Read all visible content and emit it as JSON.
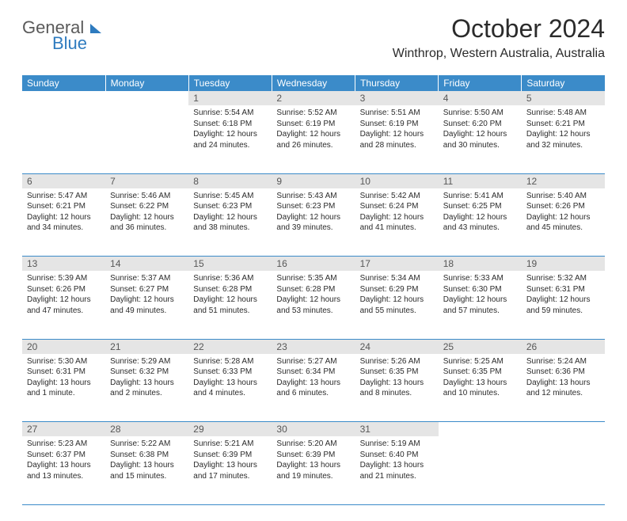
{
  "logo": {
    "top": "General",
    "bottom": "Blue"
  },
  "title": "October 2024",
  "location": "Winthrop, Western Australia, Australia",
  "colors": {
    "header_bg": "#3b8bc9",
    "header_text": "#ffffff",
    "daynum_bg": "#e5e5e5",
    "daynum_text": "#575757",
    "body_text": "#2b2b2b",
    "border": "#3b8bc9",
    "logo_gray": "#5a5a5a",
    "logo_blue": "#2e7bbf"
  },
  "weekdays": [
    "Sunday",
    "Monday",
    "Tuesday",
    "Wednesday",
    "Thursday",
    "Friday",
    "Saturday"
  ],
  "weeks": [
    [
      null,
      null,
      {
        "d": "1",
        "sr": "Sunrise: 5:54 AM",
        "ss": "Sunset: 6:18 PM",
        "dl1": "Daylight: 12 hours",
        "dl2": "and 24 minutes."
      },
      {
        "d": "2",
        "sr": "Sunrise: 5:52 AM",
        "ss": "Sunset: 6:19 PM",
        "dl1": "Daylight: 12 hours",
        "dl2": "and 26 minutes."
      },
      {
        "d": "3",
        "sr": "Sunrise: 5:51 AM",
        "ss": "Sunset: 6:19 PM",
        "dl1": "Daylight: 12 hours",
        "dl2": "and 28 minutes."
      },
      {
        "d": "4",
        "sr": "Sunrise: 5:50 AM",
        "ss": "Sunset: 6:20 PM",
        "dl1": "Daylight: 12 hours",
        "dl2": "and 30 minutes."
      },
      {
        "d": "5",
        "sr": "Sunrise: 5:48 AM",
        "ss": "Sunset: 6:21 PM",
        "dl1": "Daylight: 12 hours",
        "dl2": "and 32 minutes."
      }
    ],
    [
      {
        "d": "6",
        "sr": "Sunrise: 5:47 AM",
        "ss": "Sunset: 6:21 PM",
        "dl1": "Daylight: 12 hours",
        "dl2": "and 34 minutes."
      },
      {
        "d": "7",
        "sr": "Sunrise: 5:46 AM",
        "ss": "Sunset: 6:22 PM",
        "dl1": "Daylight: 12 hours",
        "dl2": "and 36 minutes."
      },
      {
        "d": "8",
        "sr": "Sunrise: 5:45 AM",
        "ss": "Sunset: 6:23 PM",
        "dl1": "Daylight: 12 hours",
        "dl2": "and 38 minutes."
      },
      {
        "d": "9",
        "sr": "Sunrise: 5:43 AM",
        "ss": "Sunset: 6:23 PM",
        "dl1": "Daylight: 12 hours",
        "dl2": "and 39 minutes."
      },
      {
        "d": "10",
        "sr": "Sunrise: 5:42 AM",
        "ss": "Sunset: 6:24 PM",
        "dl1": "Daylight: 12 hours",
        "dl2": "and 41 minutes."
      },
      {
        "d": "11",
        "sr": "Sunrise: 5:41 AM",
        "ss": "Sunset: 6:25 PM",
        "dl1": "Daylight: 12 hours",
        "dl2": "and 43 minutes."
      },
      {
        "d": "12",
        "sr": "Sunrise: 5:40 AM",
        "ss": "Sunset: 6:26 PM",
        "dl1": "Daylight: 12 hours",
        "dl2": "and 45 minutes."
      }
    ],
    [
      {
        "d": "13",
        "sr": "Sunrise: 5:39 AM",
        "ss": "Sunset: 6:26 PM",
        "dl1": "Daylight: 12 hours",
        "dl2": "and 47 minutes."
      },
      {
        "d": "14",
        "sr": "Sunrise: 5:37 AM",
        "ss": "Sunset: 6:27 PM",
        "dl1": "Daylight: 12 hours",
        "dl2": "and 49 minutes."
      },
      {
        "d": "15",
        "sr": "Sunrise: 5:36 AM",
        "ss": "Sunset: 6:28 PM",
        "dl1": "Daylight: 12 hours",
        "dl2": "and 51 minutes."
      },
      {
        "d": "16",
        "sr": "Sunrise: 5:35 AM",
        "ss": "Sunset: 6:28 PM",
        "dl1": "Daylight: 12 hours",
        "dl2": "and 53 minutes."
      },
      {
        "d": "17",
        "sr": "Sunrise: 5:34 AM",
        "ss": "Sunset: 6:29 PM",
        "dl1": "Daylight: 12 hours",
        "dl2": "and 55 minutes."
      },
      {
        "d": "18",
        "sr": "Sunrise: 5:33 AM",
        "ss": "Sunset: 6:30 PM",
        "dl1": "Daylight: 12 hours",
        "dl2": "and 57 minutes."
      },
      {
        "d": "19",
        "sr": "Sunrise: 5:32 AM",
        "ss": "Sunset: 6:31 PM",
        "dl1": "Daylight: 12 hours",
        "dl2": "and 59 minutes."
      }
    ],
    [
      {
        "d": "20",
        "sr": "Sunrise: 5:30 AM",
        "ss": "Sunset: 6:31 PM",
        "dl1": "Daylight: 13 hours",
        "dl2": "and 1 minute."
      },
      {
        "d": "21",
        "sr": "Sunrise: 5:29 AM",
        "ss": "Sunset: 6:32 PM",
        "dl1": "Daylight: 13 hours",
        "dl2": "and 2 minutes."
      },
      {
        "d": "22",
        "sr": "Sunrise: 5:28 AM",
        "ss": "Sunset: 6:33 PM",
        "dl1": "Daylight: 13 hours",
        "dl2": "and 4 minutes."
      },
      {
        "d": "23",
        "sr": "Sunrise: 5:27 AM",
        "ss": "Sunset: 6:34 PM",
        "dl1": "Daylight: 13 hours",
        "dl2": "and 6 minutes."
      },
      {
        "d": "24",
        "sr": "Sunrise: 5:26 AM",
        "ss": "Sunset: 6:35 PM",
        "dl1": "Daylight: 13 hours",
        "dl2": "and 8 minutes."
      },
      {
        "d": "25",
        "sr": "Sunrise: 5:25 AM",
        "ss": "Sunset: 6:35 PM",
        "dl1": "Daylight: 13 hours",
        "dl2": "and 10 minutes."
      },
      {
        "d": "26",
        "sr": "Sunrise: 5:24 AM",
        "ss": "Sunset: 6:36 PM",
        "dl1": "Daylight: 13 hours",
        "dl2": "and 12 minutes."
      }
    ],
    [
      {
        "d": "27",
        "sr": "Sunrise: 5:23 AM",
        "ss": "Sunset: 6:37 PM",
        "dl1": "Daylight: 13 hours",
        "dl2": "and 13 minutes."
      },
      {
        "d": "28",
        "sr": "Sunrise: 5:22 AM",
        "ss": "Sunset: 6:38 PM",
        "dl1": "Daylight: 13 hours",
        "dl2": "and 15 minutes."
      },
      {
        "d": "29",
        "sr": "Sunrise: 5:21 AM",
        "ss": "Sunset: 6:39 PM",
        "dl1": "Daylight: 13 hours",
        "dl2": "and 17 minutes."
      },
      {
        "d": "30",
        "sr": "Sunrise: 5:20 AM",
        "ss": "Sunset: 6:39 PM",
        "dl1": "Daylight: 13 hours",
        "dl2": "and 19 minutes."
      },
      {
        "d": "31",
        "sr": "Sunrise: 5:19 AM",
        "ss": "Sunset: 6:40 PM",
        "dl1": "Daylight: 13 hours",
        "dl2": "and 21 minutes."
      },
      null,
      null
    ]
  ]
}
